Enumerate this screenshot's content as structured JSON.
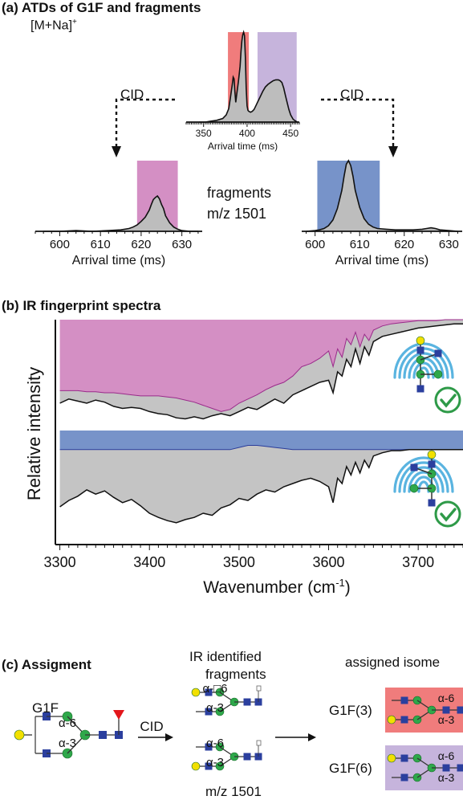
{
  "panel_a": {
    "label": "(a)",
    "title": "ATDs of G1F and fragments",
    "ion": "[M+Na]",
    "ion_sup": "+",
    "cid_left": "CID",
    "cid_right": "CID",
    "fragments_line1": "fragments",
    "fragments_line2": "m/z 1501"
  },
  "panel_b": {
    "label": "(b)",
    "title": "IR fingerprint spectra"
  },
  "panel_c": {
    "label": "(c)",
    "title": "Assigment",
    "g1f": "G1F",
    "cid": "CID",
    "ir_line1": "IR identified",
    "ir_line2": "fragments",
    "mz": "m/z 1501",
    "assigned": "assigned isome",
    "g1f3": "G1F(3)",
    "g1f6": "G1F(6)",
    "link_a6": "α-6",
    "link_a3": "α-3",
    "link_a6_broken": "α-□6"
  },
  "colors": {
    "red": "#f07c7c",
    "lavender": "#c6b4dc",
    "pink": "#d48fc4",
    "blue": "#7793c9",
    "gray": "#c4c4c4",
    "glc_blue": "#2b3f9e",
    "man_green": "#2ea84a",
    "gal_yellow": "#f2e000",
    "fuc_red": "#e3161b",
    "check_green": "#2e9a48",
    "fingerprint_blue": "#5ab4e0"
  },
  "chart_data": [
    {
      "type": "line",
      "name": "ATD G1F [M+Na]+",
      "xlabel": "Arrival time (ms)",
      "xticks": [
        350,
        400,
        450
      ],
      "xlim": [
        330,
        460
      ],
      "x": [
        345,
        352,
        358,
        365,
        372,
        376,
        379,
        381,
        383,
        384,
        385,
        386,
        387,
        388,
        390,
        392,
        393,
        394,
        395,
        396,
        397,
        398,
        399,
        400,
        401,
        402,
        404,
        406,
        408,
        410,
        412,
        415,
        418,
        421,
        424,
        427,
        430,
        433,
        436,
        438,
        440,
        442,
        444,
        446,
        448,
        450,
        453,
        456,
        458
      ],
      "y": [
        0,
        0,
        0.01,
        0.02,
        0.04,
        0.08,
        0.15,
        0.28,
        0.42,
        0.5,
        0.48,
        0.34,
        0.22,
        0.3,
        0.45,
        0.62,
        0.78,
        0.9,
        0.97,
        1.0,
        0.96,
        0.72,
        0.38,
        0.18,
        0.13,
        0.12,
        0.11,
        0.12,
        0.14,
        0.18,
        0.22,
        0.28,
        0.34,
        0.39,
        0.42,
        0.44,
        0.46,
        0.47,
        0.47,
        0.46,
        0.44,
        0.38,
        0.3,
        0.22,
        0.14,
        0.08,
        0.03,
        0.01,
        0
      ],
      "highlights": [
        {
          "from": 378,
          "to": 402,
          "color": "red"
        },
        {
          "from": 412,
          "to": 457,
          "color": "lavender"
        }
      ]
    },
    {
      "type": "line",
      "name": "ATD fragments left",
      "xlabel": "Arrival time (ms)",
      "xticks": [
        600,
        610,
        620,
        630
      ],
      "xlim": [
        594,
        635
      ],
      "x": [
        596,
        600,
        604,
        608,
        612,
        615,
        617,
        618,
        619,
        620,
        621,
        622,
        622.5,
        623,
        623.5,
        624,
        624.5,
        625,
        625.5,
        626,
        627,
        628,
        629,
        630,
        632,
        634
      ],
      "y": [
        0,
        0,
        0.01,
        0.0,
        0.01,
        0.02,
        0.04,
        0.06,
        0.09,
        0.14,
        0.2,
        0.3,
        0.38,
        0.45,
        0.48,
        0.5,
        0.46,
        0.38,
        0.32,
        0.22,
        0.12,
        0.06,
        0.03,
        0.01,
        0,
        0
      ],
      "highlights": [
        {
          "from": 619,
          "to": 629,
          "color": "pink"
        }
      ]
    },
    {
      "type": "line",
      "name": "ATD fragments right",
      "xlabel": "Arrival time (ms)",
      "xticks": [
        600,
        610,
        620,
        630
      ],
      "xlim": [
        597,
        633
      ],
      "x": [
        598,
        600,
        601,
        602,
        603,
        604,
        605,
        606,
        606.5,
        607,
        607.5,
        608,
        608.5,
        609,
        610,
        611,
        612,
        613,
        614,
        616,
        618,
        620,
        622,
        624,
        625,
        626,
        627,
        628,
        630,
        632
      ],
      "y": [
        0,
        0.01,
        0.02,
        0.04,
        0.08,
        0.16,
        0.32,
        0.58,
        0.78,
        0.95,
        1.0,
        0.93,
        0.78,
        0.58,
        0.34,
        0.18,
        0.1,
        0.06,
        0.04,
        0.03,
        0.02,
        0.02,
        0.02,
        0.03,
        0.04,
        0.05,
        0.04,
        0.02,
        0.01,
        0
      ],
      "highlights": [
        {
          "from": 600.5,
          "to": 614.5,
          "color": "blue"
        }
      ]
    },
    {
      "type": "area",
      "xlabel": "Wavenumber (cm",
      "xlabel_sup": "-1",
      "xlabel_end": ")",
      "ylabel": "Relative intensity",
      "xticks": [
        3300,
        3400,
        3500,
        3600,
        3700
      ],
      "xlim": [
        3295,
        3750
      ],
      "x": [
        3300,
        3310,
        3320,
        3330,
        3340,
        3350,
        3360,
        3370,
        3380,
        3390,
        3400,
        3410,
        3420,
        3430,
        3440,
        3450,
        3460,
        3470,
        3480,
        3490,
        3500,
        3510,
        3520,
        3530,
        3540,
        3550,
        3560,
        3570,
        3580,
        3590,
        3600,
        3605,
        3610,
        3615,
        3620,
        3625,
        3630,
        3635,
        3640,
        3645,
        3650,
        3660,
        3670,
        3680,
        3690,
        3700,
        3710,
        3720,
        3730,
        3740,
        3750
      ],
      "series": [
        {
          "color": "pink",
          "colored": [
            0.32,
            0.32,
            0.32,
            0.31,
            0.31,
            0.3,
            0.3,
            0.29,
            0.28,
            0.27,
            0.27,
            0.27,
            0.26,
            0.25,
            0.23,
            0.21,
            0.18,
            0.15,
            0.12,
            0.14,
            0.2,
            0.24,
            0.28,
            0.33,
            0.37,
            0.4,
            0.46,
            0.55,
            0.58,
            0.63,
            0.7,
            0.55,
            0.72,
            0.64,
            0.82,
            0.76,
            0.88,
            0.74,
            0.86,
            0.8,
            0.9,
            0.94,
            0.96,
            0.97,
            0.98,
            0.99,
            0.99,
            0.99,
            1.0,
            1.0,
            1.0
          ],
          "black": [
            0.2,
            0.24,
            0.22,
            0.2,
            0.23,
            0.21,
            0.17,
            0.15,
            0.16,
            0.15,
            0.12,
            0.1,
            0.09,
            0.06,
            0.05,
            0.07,
            0.05,
            0.08,
            0.1,
            0.08,
            0.12,
            0.16,
            0.14,
            0.19,
            0.24,
            0.2,
            0.28,
            0.32,
            0.36,
            0.4,
            0.42,
            0.3,
            0.5,
            0.46,
            0.62,
            0.55,
            0.72,
            0.58,
            0.74,
            0.66,
            0.79,
            0.84,
            0.86,
            0.88,
            0.9,
            0.92,
            0.93,
            0.94,
            0.95,
            0.96,
            0.96
          ]
        },
        {
          "color": "blue",
          "colored": [
            0.82,
            0.82,
            0.82,
            0.82,
            0.82,
            0.82,
            0.82,
            0.82,
            0.82,
            0.82,
            0.82,
            0.82,
            0.82,
            0.82,
            0.82,
            0.82,
            0.82,
            0.82,
            0.82,
            0.82,
            0.84,
            0.86,
            0.86,
            0.85,
            0.84,
            0.83,
            0.82,
            0.82,
            0.82,
            0.82,
            0.82,
            0.82,
            0.82,
            0.82,
            0.82,
            0.82,
            0.82,
            0.82,
            0.82,
            0.82,
            0.82,
            0.82,
            0.82,
            0.82,
            0.82,
            0.82,
            0.82,
            0.82,
            0.82,
            0.82,
            0.82
          ],
          "black": [
            0.28,
            0.34,
            0.38,
            0.44,
            0.4,
            0.43,
            0.37,
            0.32,
            0.35,
            0.29,
            0.22,
            0.18,
            0.15,
            0.13,
            0.16,
            0.18,
            0.22,
            0.2,
            0.27,
            0.3,
            0.36,
            0.34,
            0.4,
            0.44,
            0.42,
            0.47,
            0.5,
            0.53,
            0.55,
            0.52,
            0.47,
            0.32,
            0.55,
            0.5,
            0.66,
            0.58,
            0.7,
            0.6,
            0.72,
            0.65,
            0.76,
            0.79,
            0.81,
            0.81,
            0.82,
            0.82,
            0.82,
            0.82,
            0.82,
            0.82,
            0.82
          ]
        }
      ]
    }
  ]
}
